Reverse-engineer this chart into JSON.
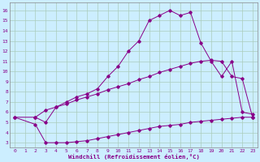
{
  "xlabel": "Windchill (Refroidissement éolien,°C)",
  "background_color": "#cceeff",
  "grid_color": "#aaccbb",
  "line_color": "#880088",
  "xlim": [
    -0.5,
    23.5
  ],
  "ylim": [
    2.5,
    16.8
  ],
  "xticks": [
    0,
    1,
    2,
    3,
    4,
    5,
    6,
    7,
    8,
    9,
    10,
    11,
    12,
    13,
    14,
    15,
    16,
    17,
    18,
    19,
    20,
    21,
    22,
    23
  ],
  "yticks": [
    3,
    4,
    5,
    6,
    7,
    8,
    9,
    10,
    11,
    12,
    13,
    14,
    15,
    16
  ],
  "series": [
    {
      "x": [
        0,
        2,
        3,
        4,
        5,
        6,
        7,
        8,
        9,
        10,
        11,
        12,
        13,
        14,
        15,
        16,
        17,
        18,
        19,
        20,
        21,
        22,
        23
      ],
      "y": [
        5.5,
        4.8,
        3.0,
        3.0,
        3.0,
        3.1,
        3.2,
        3.4,
        3.6,
        3.8,
        4.0,
        4.2,
        4.4,
        4.6,
        4.7,
        4.8,
        5.0,
        5.1,
        5.2,
        5.3,
        5.4,
        5.5,
        5.5
      ]
    },
    {
      "x": [
        0,
        2,
        3,
        4,
        5,
        6,
        7,
        8,
        9,
        10,
        11,
        12,
        13,
        14,
        15,
        16,
        17,
        18,
        19,
        20,
        21,
        22,
        23
      ],
      "y": [
        5.5,
        5.5,
        6.2,
        6.5,
        6.8,
        7.2,
        7.5,
        7.8,
        8.2,
        8.5,
        8.8,
        9.2,
        9.5,
        9.9,
        10.2,
        10.5,
        10.8,
        11.0,
        11.1,
        11.0,
        9.5,
        9.3,
        5.5
      ]
    },
    {
      "x": [
        2,
        3,
        4,
        5,
        6,
        7,
        8,
        9,
        10,
        11,
        12,
        13,
        14,
        15,
        16,
        17,
        18,
        19,
        20,
        21,
        22,
        23
      ],
      "y": [
        5.5,
        5.0,
        6.5,
        7.0,
        7.5,
        7.8,
        8.3,
        9.5,
        10.5,
        12.0,
        13.0,
        15.0,
        15.5,
        16.0,
        15.5,
        15.8,
        12.8,
        11.0,
        9.5,
        11.0,
        6.0,
        5.8
      ]
    }
  ]
}
